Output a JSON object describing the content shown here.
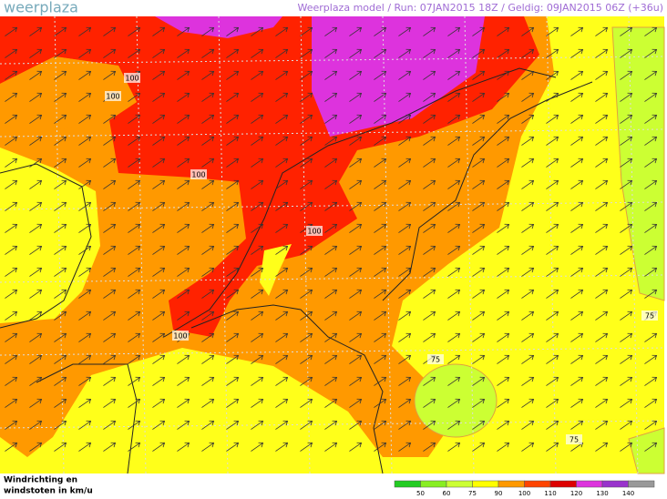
{
  "header": {
    "logo": "weerplaza",
    "info": "Weerplaza model  /  Run: 07JAN2015 18Z  /  Geldig: 09JAN2015 06Z (+36u)"
  },
  "map": {
    "contour_labels": [
      "100",
      "100",
      "100",
      "100",
      "100",
      "75",
      "75",
      "75"
    ]
  },
  "legend": {
    "title_line1": "Windrichting en",
    "title_line2": "windstoten in km/u",
    "labels": [
      "50",
      "60",
      "75",
      "90",
      "100",
      "110",
      "120",
      "130",
      "140"
    ],
    "colors": [
      "#22cc22",
      "#88ee22",
      "#ccff33",
      "#ffff00",
      "#ff9900",
      "#ff4400",
      "#dd0000",
      "#dd33dd",
      "#9933cc",
      "#999999"
    ]
  }
}
